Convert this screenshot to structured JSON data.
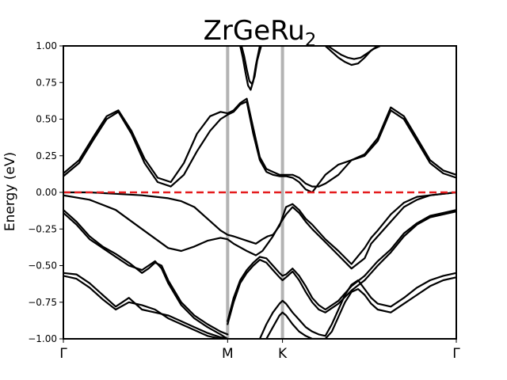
{
  "chart_data": {
    "type": "line",
    "title": "ZrGeRu",
    "title_subscript": "2",
    "ylabel": "Energy (eV)",
    "ylim": [
      -1.0,
      1.0
    ],
    "xlim": [
      0,
      3
    ],
    "yticks": [
      {
        "value": 1.0,
        "label": "1.00"
      },
      {
        "value": 0.75,
        "label": "0.75"
      },
      {
        "value": 0.5,
        "label": "0.50"
      },
      {
        "value": 0.25,
        "label": "0.25"
      },
      {
        "value": 0.0,
        "label": "0.00"
      },
      {
        "value": -0.25,
        "label": "−0.25"
      },
      {
        "value": -0.5,
        "label": "−0.50"
      },
      {
        "value": -0.75,
        "label": "−0.75"
      },
      {
        "value": -1.0,
        "label": "−1.00"
      }
    ],
    "kpoints": [
      {
        "label": "Γ",
        "x": 0.0
      },
      {
        "label": "M",
        "x": 1.254
      },
      {
        "label": "K",
        "x": 1.673
      },
      {
        "label": "Γ",
        "x": 3.0
      }
    ],
    "kpath_lines": [
      1.254,
      1.673
    ],
    "fermi_level": 0.0,
    "colors": {
      "bands": "#000000",
      "fermi": "#e41a1c",
      "kpath": "#b3b3b3"
    },
    "series": [
      {
        "x": [
          0,
          0.12,
          0.23,
          0.33,
          0.42,
          0.52,
          0.62,
          0.72,
          0.82,
          0.92,
          1.02,
          1.12,
          1.2,
          1.254
        ],
        "values": [
          0.11,
          0.2,
          0.36,
          0.5,
          0.55,
          0.4,
          0.2,
          0.07,
          0.04,
          0.12,
          0.28,
          0.42,
          0.5,
          0.53
        ]
      },
      {
        "x": [
          0,
          0.12,
          0.23,
          0.33,
          0.42,
          0.52,
          0.62,
          0.72,
          0.82,
          0.92,
          1.02,
          1.12,
          1.2,
          1.254
        ],
        "values": [
          0.13,
          0.22,
          0.38,
          0.52,
          0.56,
          0.42,
          0.23,
          0.1,
          0.07,
          0.2,
          0.4,
          0.52,
          0.55,
          0.54
        ]
      },
      {
        "x": [
          1.254,
          1.3,
          1.35,
          1.4,
          1.45,
          1.5,
          1.55,
          1.6,
          1.65,
          1.7,
          1.75,
          1.8,
          1.85,
          1.9,
          1.95,
          2.0,
          2.1,
          2.2,
          2.3,
          2.4,
          2.5,
          2.6,
          2.7,
          2.8,
          2.9,
          3.0
        ],
        "values": [
          0.53,
          0.55,
          0.6,
          0.62,
          0.4,
          0.22,
          0.14,
          0.12,
          0.11,
          0.11,
          0.1,
          0.07,
          0.02,
          0.0,
          0.06,
          0.12,
          0.19,
          0.22,
          0.25,
          0.35,
          0.56,
          0.5,
          0.35,
          0.2,
          0.13,
          0.1
        ]
      },
      {
        "x": [
          1.254,
          1.3,
          1.35,
          1.4,
          1.45,
          1.5,
          1.55,
          1.6,
          1.65,
          1.7,
          1.75,
          1.8,
          1.85,
          1.9,
          1.95,
          2.0,
          2.1,
          2.2,
          2.3,
          2.4,
          2.5,
          2.6,
          2.7,
          2.8,
          2.9,
          3.0
        ],
        "values": [
          0.54,
          0.56,
          0.61,
          0.64,
          0.44,
          0.24,
          0.16,
          0.14,
          0.12,
          0.12,
          0.12,
          0.1,
          0.06,
          0.04,
          0.04,
          0.06,
          0.12,
          0.22,
          0.26,
          0.37,
          0.58,
          0.52,
          0.37,
          0.22,
          0.15,
          0.12
        ]
      },
      {
        "x": [
          1.35,
          1.37,
          1.39,
          1.41,
          1.43,
          1.45,
          1.47,
          1.5
        ],
        "values": [
          1.0,
          0.92,
          0.82,
          0.73,
          0.7,
          0.76,
          0.87,
          1.0
        ]
      },
      {
        "x": [
          1.36,
          1.38,
          1.4,
          1.42,
          1.44,
          1.46,
          1.48,
          1.51
        ],
        "values": [
          1.0,
          0.93,
          0.84,
          0.76,
          0.74,
          0.79,
          0.9,
          1.0
        ]
      },
      {
        "x": [
          2.0,
          2.05,
          2.1,
          2.15,
          2.2,
          2.25,
          2.3,
          2.35,
          2.4
        ],
        "values": [
          1.0,
          0.96,
          0.92,
          0.89,
          0.87,
          0.88,
          0.92,
          0.97,
          1.0
        ]
      },
      {
        "x": [
          2.02,
          2.07,
          2.12,
          2.17,
          2.22,
          2.27,
          2.32,
          2.37,
          2.42
        ],
        "values": [
          1.0,
          0.97,
          0.94,
          0.92,
          0.91,
          0.92,
          0.95,
          0.98,
          1.0
        ]
      },
      {
        "x": [
          0,
          0.2,
          0.4,
          0.6,
          0.8,
          0.9,
          1.0,
          1.1,
          1.2,
          1.254,
          1.3,
          1.4,
          1.47,
          1.52,
          1.56,
          1.6,
          1.65,
          1.7,
          1.75,
          1.8,
          1.85,
          1.9,
          2.0,
          2.1,
          2.2,
          2.3,
          2.35,
          2.4,
          2.5,
          2.6,
          2.7,
          2.8,
          2.9,
          3.0
        ],
        "values": [
          -0.02,
          -0.05,
          -0.12,
          -0.25,
          -0.38,
          -0.4,
          -0.37,
          -0.33,
          -0.31,
          -0.32,
          -0.35,
          -0.4,
          -0.43,
          -0.4,
          -0.35,
          -0.3,
          -0.22,
          -0.15,
          -0.1,
          -0.14,
          -0.2,
          -0.25,
          -0.34,
          -0.43,
          -0.52,
          -0.45,
          -0.35,
          -0.3,
          -0.2,
          -0.1,
          -0.05,
          -0.02,
          -0.01,
          0.0
        ]
      },
      {
        "x": [
          0,
          0.2,
          0.4,
          0.6,
          0.8,
          0.9,
          1.0,
          1.1,
          1.2,
          1.254,
          1.3,
          1.4,
          1.47,
          1.52,
          1.56,
          1.6,
          1.65,
          1.7,
          1.75,
          1.8,
          1.85,
          1.9,
          2.0,
          2.1,
          2.2,
          2.3,
          2.35,
          2.4,
          2.5,
          2.6,
          2.7,
          2.8,
          2.9,
          3.0
        ],
        "values": [
          0.0,
          0.0,
          -0.01,
          -0.02,
          -0.04,
          -0.06,
          -0.1,
          -0.18,
          -0.26,
          -0.29,
          -0.3,
          -0.33,
          -0.35,
          -0.32,
          -0.3,
          -0.29,
          -0.23,
          -0.1,
          -0.08,
          -0.12,
          -0.18,
          -0.22,
          -0.32,
          -0.4,
          -0.49,
          -0.38,
          -0.31,
          -0.26,
          -0.15,
          -0.07,
          -0.03,
          -0.02,
          -0.01,
          0.0
        ]
      },
      {
        "x": [
          0,
          0.1,
          0.2,
          0.3,
          0.4,
          0.5,
          0.6,
          0.65,
          0.7,
          0.75,
          0.8,
          0.9,
          1.0,
          1.1,
          1.2,
          1.254
        ],
        "values": [
          -0.12,
          -0.2,
          -0.3,
          -0.37,
          -0.42,
          -0.48,
          -0.55,
          -0.52,
          -0.48,
          -0.5,
          -0.6,
          -0.75,
          -0.84,
          -0.9,
          -0.95,
          -0.97
        ]
      },
      {
        "x": [
          0,
          0.1,
          0.2,
          0.3,
          0.4,
          0.5,
          0.6,
          0.65,
          0.7,
          0.75,
          0.8,
          0.9,
          1.0,
          1.1,
          1.2,
          1.254
        ],
        "values": [
          -0.14,
          -0.22,
          -0.32,
          -0.38,
          -0.44,
          -0.5,
          -0.53,
          -0.5,
          -0.47,
          -0.52,
          -0.62,
          -0.77,
          -0.86,
          -0.92,
          -0.97,
          -1.0
        ]
      },
      {
        "x": [
          1.254,
          1.3,
          1.35,
          1.4,
          1.45,
          1.5,
          1.55,
          1.6,
          1.65,
          1.673,
          1.7,
          1.75,
          1.8,
          1.85,
          1.9,
          1.95,
          2.0,
          2.1,
          2.2,
          2.3,
          2.35,
          2.4,
          2.5,
          2.6,
          2.7,
          2.8,
          2.9,
          3.0
        ],
        "values": [
          -0.9,
          -0.75,
          -0.62,
          -0.55,
          -0.5,
          -0.46,
          -0.48,
          -0.53,
          -0.58,
          -0.6,
          -0.58,
          -0.54,
          -0.6,
          -0.68,
          -0.75,
          -0.8,
          -0.82,
          -0.76,
          -0.67,
          -0.6,
          -0.55,
          -0.5,
          -0.41,
          -0.3,
          -0.22,
          -0.17,
          -0.15,
          -0.13
        ]
      },
      {
        "x": [
          1.254,
          1.3,
          1.35,
          1.4,
          1.45,
          1.5,
          1.55,
          1.6,
          1.65,
          1.673,
          1.7,
          1.75,
          1.8,
          1.85,
          1.9,
          1.95,
          2.0,
          2.1,
          2.2,
          2.3,
          2.35,
          2.4,
          2.5,
          2.6,
          2.7,
          2.8,
          2.9,
          3.0
        ],
        "values": [
          -0.88,
          -0.72,
          -0.6,
          -0.53,
          -0.48,
          -0.44,
          -0.45,
          -0.5,
          -0.55,
          -0.57,
          -0.56,
          -0.52,
          -0.57,
          -0.64,
          -0.72,
          -0.77,
          -0.8,
          -0.74,
          -0.64,
          -0.57,
          -0.52,
          -0.47,
          -0.39,
          -0.28,
          -0.21,
          -0.16,
          -0.14,
          -0.12
        ]
      },
      {
        "x": [
          0,
          0.1,
          0.2,
          0.3,
          0.4,
          0.5,
          0.6,
          0.7,
          0.8,
          0.9,
          1.0,
          1.1,
          1.2,
          1.254
        ],
        "values": [
          -0.55,
          -0.56,
          -0.62,
          -0.7,
          -0.78,
          -0.72,
          -0.8,
          -0.82,
          -0.84,
          -0.88,
          -0.92,
          -0.96,
          -0.99,
          -1.0
        ]
      },
      {
        "x": [
          0,
          0.1,
          0.2,
          0.3,
          0.4,
          0.5,
          0.6,
          0.7,
          0.8,
          0.9,
          1.0,
          1.1,
          1.2,
          1.254
        ],
        "values": [
          -0.57,
          -0.59,
          -0.65,
          -0.73,
          -0.8,
          -0.75,
          -0.77,
          -0.8,
          -0.86,
          -0.9,
          -0.94,
          -0.98,
          -1.0,
          -1.0
        ]
      },
      {
        "x": [
          1.5,
          1.55,
          1.6,
          1.65,
          1.673,
          1.7,
          1.75,
          1.8,
          1.85,
          1.9,
          1.95,
          2.0,
          2.05,
          2.1,
          2.15,
          2.2,
          2.25,
          2.3,
          2.35,
          2.4,
          2.5,
          2.6,
          2.7,
          2.8,
          2.9,
          3.0
        ],
        "values": [
          -1.0,
          -0.9,
          -0.82,
          -0.76,
          -0.74,
          -0.76,
          -0.82,
          -0.87,
          -0.92,
          -0.95,
          -0.97,
          -0.98,
          -0.9,
          -0.8,
          -0.7,
          -0.63,
          -0.6,
          -0.66,
          -0.72,
          -0.76,
          -0.78,
          -0.72,
          -0.65,
          -0.6,
          -0.57,
          -0.55
        ]
      },
      {
        "x": [
          1.55,
          1.6,
          1.65,
          1.673,
          1.7,
          1.75,
          1.8,
          1.85,
          1.9,
          1.95,
          2.0,
          2.05,
          2.1,
          2.15,
          2.2,
          2.25,
          2.3,
          2.35,
          2.4,
          2.5,
          2.6,
          2.7,
          2.8,
          2.9,
          3.0
        ],
        "values": [
          -1.0,
          -0.92,
          -0.84,
          -0.82,
          -0.84,
          -0.9,
          -0.95,
          -0.98,
          -1.0,
          -1.0,
          -1.0,
          -0.95,
          -0.85,
          -0.75,
          -0.68,
          -0.66,
          -0.7,
          -0.76,
          -0.8,
          -0.82,
          -0.76,
          -0.7,
          -0.64,
          -0.6,
          -0.58
        ]
      }
    ]
  }
}
